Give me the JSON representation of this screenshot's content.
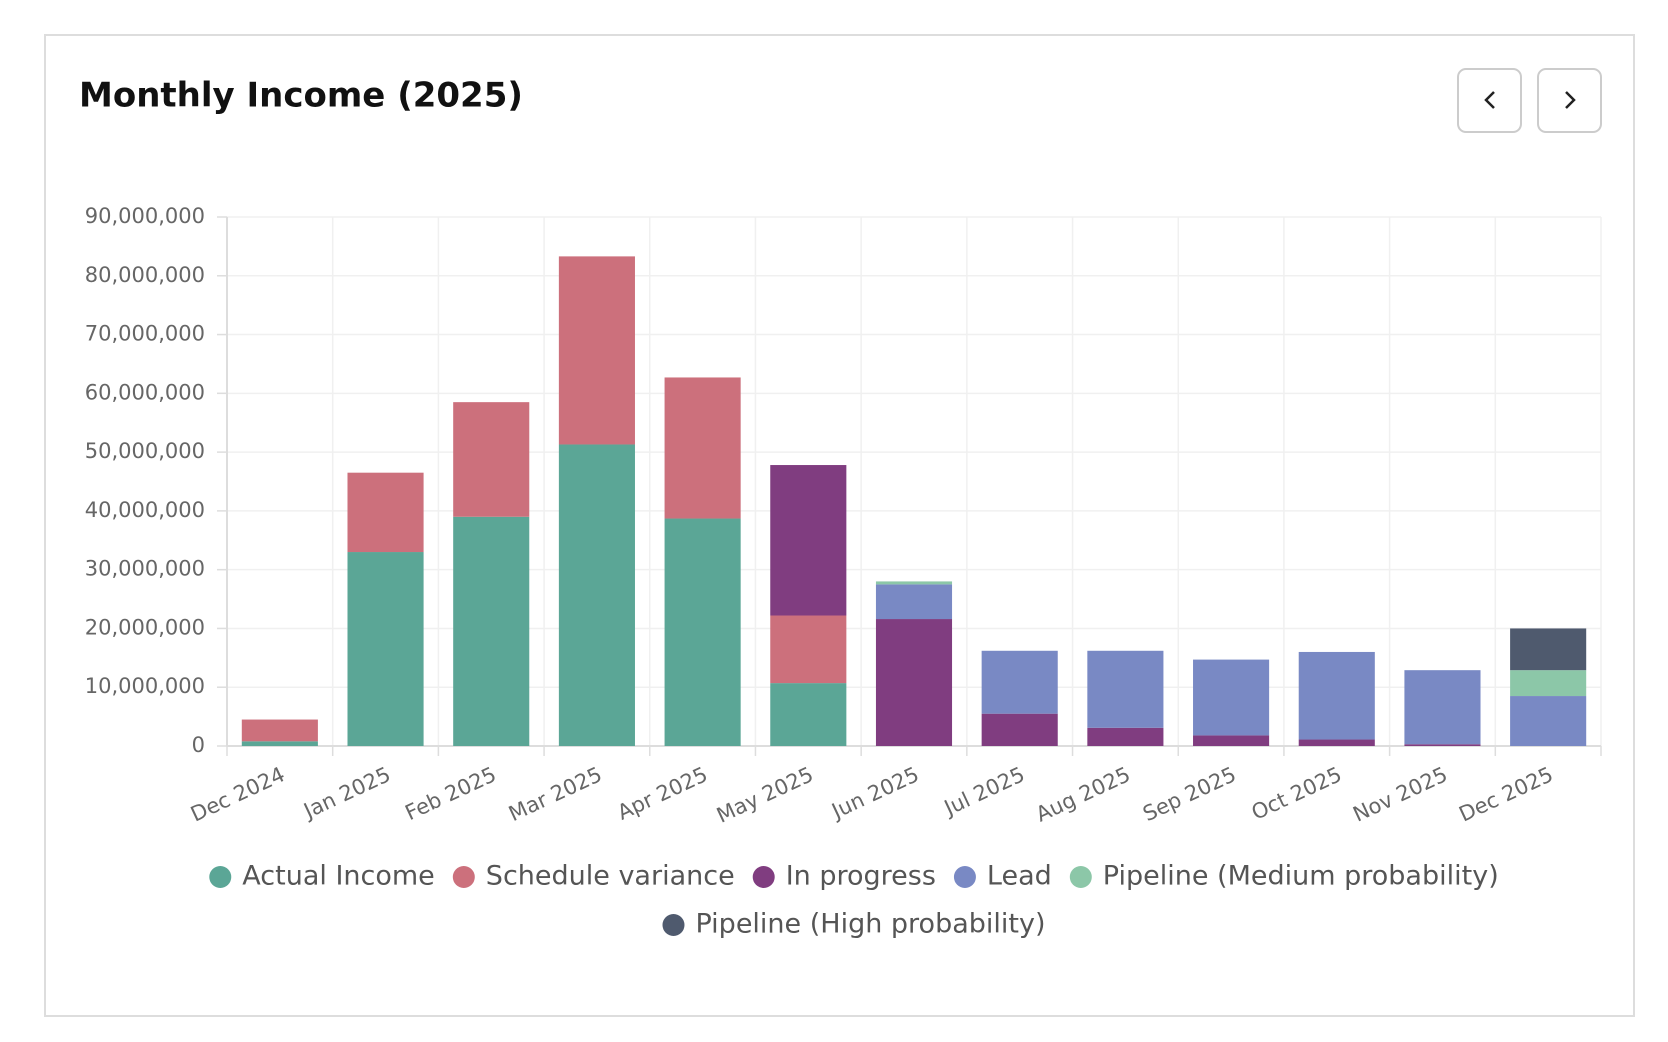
{
  "chart_data": {
    "type": "stacked-bar",
    "title": "Monthly Income (2025)",
    "categories": [
      "Dec 2024",
      "Jan 2025",
      "Feb 2025",
      "Mar 2025",
      "Apr 2025",
      "May 2025",
      "Jun 2025",
      "Jul 2025",
      "Aug 2025",
      "Sep 2025",
      "Oct 2025",
      "Nov 2025",
      "Dec 2025"
    ],
    "series": [
      {
        "name": "Actual Income",
        "color": "#5ba696",
        "values": [
          800000,
          33000000,
          39000000,
          51300000,
          38700000,
          10700000,
          null,
          null,
          null,
          null,
          null,
          null,
          null
        ]
      },
      {
        "name": "Schedule variance",
        "color": "#cc707c",
        "values": [
          3700000,
          13500000,
          19500000,
          32000000,
          24000000,
          11500000,
          null,
          null,
          null,
          null,
          null,
          null,
          null
        ]
      },
      {
        "name": "In progress",
        "color": "#803d80",
        "values": [
          null,
          null,
          null,
          null,
          null,
          25600000,
          21600000,
          5500000,
          3100000,
          1800000,
          1100000,
          300000,
          null
        ]
      },
      {
        "name": "Lead",
        "color": "#7989c4",
        "values": [
          null,
          null,
          null,
          null,
          null,
          null,
          5900000,
          10700000,
          13100000,
          12900000,
          14900000,
          12600000,
          8500000
        ]
      },
      {
        "name": "Pipeline (Medium probability)",
        "color": "#8cc7a8",
        "values": [
          null,
          null,
          null,
          null,
          null,
          null,
          500000,
          null,
          null,
          null,
          null,
          null,
          4400000
        ]
      },
      {
        "name": "Pipeline (High probability)",
        "color": "#4f5a6e",
        "values": [
          null,
          null,
          null,
          null,
          null,
          null,
          null,
          null,
          null,
          null,
          null,
          null,
          7100000
        ]
      }
    ],
    "ylim": [
      0,
      90000000
    ],
    "yticks": [
      0,
      {
        "value": 10000000,
        "label": "10,000,000"
      },
      {
        "value": 20000000,
        "label": "20,000,000"
      },
      {
        "value": 30000000,
        "label": "30,000,000"
      },
      {
        "value": 40000000,
        "label": "40,000,000"
      },
      {
        "value": 50000000,
        "label": "50,000,000"
      },
      {
        "value": 60000000,
        "label": "60,000,000"
      },
      {
        "value": 70000000,
        "label": "70,000,000"
      },
      {
        "value": 80000000,
        "label": "80,000,000"
      },
      {
        "value": 90000000,
        "label": "90,000,000"
      }
    ],
    "grid": true
  }
}
